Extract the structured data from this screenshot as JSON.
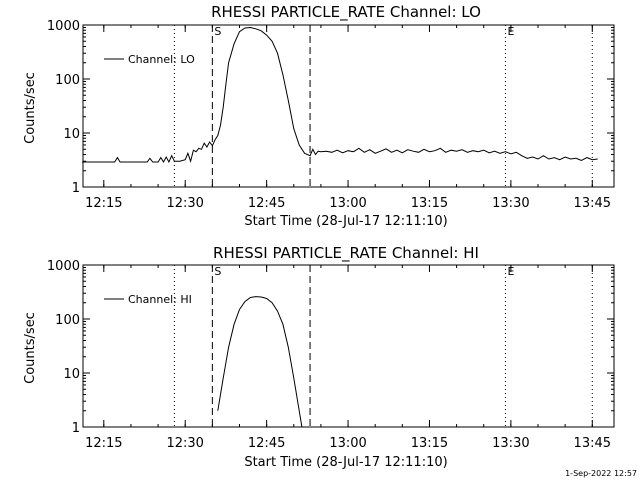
{
  "footer": "1-Sep-2022 12:57",
  "chart_data": [
    {
      "type": "line",
      "title": "RHESSI PARTICLE_RATE Channel: LO",
      "xlabel": "Start Time (28-Jul-17 12:11:10)",
      "ylabel": "Counts/sec",
      "yscale": "log",
      "ylim": [
        1,
        1000
      ],
      "xlim": [
        "12:11:10",
        "13:49:00"
      ],
      "x_ticks": [
        "12:15",
        "12:30",
        "12:45",
        "13:00",
        "13:15",
        "13:30",
        "13:45"
      ],
      "y_ticks": [
        "1",
        "10",
        "100",
        "1000"
      ],
      "legend": {
        "label": "Channel: LO",
        "position": "top-left"
      },
      "vertical_markers": [
        {
          "time": "12:28",
          "style": "dotted",
          "label": ""
        },
        {
          "time": "12:35",
          "style": "dashed",
          "label": "S"
        },
        {
          "time": "12:53",
          "style": "dashed",
          "label": ""
        },
        {
          "time": "13:29",
          "style": "dotted",
          "label": "E"
        },
        {
          "time": "13:45",
          "style": "dotted",
          "label": ""
        }
      ],
      "series": [
        {
          "name": "Channel: LO",
          "x": [
            "12:11",
            "12:15",
            "12:17",
            "12:17.5",
            "12:18",
            "12:23",
            "12:23.5",
            "12:24",
            "12:25",
            "12:25.5",
            "12:26",
            "12:26.5",
            "12:27",
            "12:27.5",
            "12:28",
            "12:29",
            "12:30",
            "12:30.5",
            "12:31",
            "12:31.5",
            "12:32",
            "12:32.5",
            "12:33",
            "12:33.5",
            "12:34",
            "12:34.5",
            "12:35",
            "12:35.5",
            "12:36",
            "12:36.5",
            "12:37",
            "12:37.5",
            "12:38",
            "12:39",
            "12:40",
            "12:41",
            "12:42",
            "12:43",
            "12:44",
            "12:45",
            "12:46",
            "12:47",
            "12:48",
            "12:49",
            "12:50",
            "12:51",
            "12:52",
            "12:53",
            "12:53.5",
            "12:54",
            "12:54.5",
            "12:55",
            "12:56",
            "12:57",
            "12:58",
            "12:59",
            "13:00",
            "13:01",
            "13:02",
            "13:03",
            "13:04",
            "13:05",
            "13:06",
            "13:07",
            "13:08",
            "13:09",
            "13:10",
            "13:11",
            "13:12",
            "13:13",
            "13:14",
            "13:15",
            "13:16",
            "13:17",
            "13:18",
            "13:19",
            "13:20",
            "13:21",
            "13:22",
            "13:23",
            "13:24",
            "13:25",
            "13:26",
            "13:27",
            "13:28",
            "13:29",
            "13:30",
            "13:31",
            "13:32",
            "13:33",
            "13:34",
            "13:35",
            "13:36",
            "13:37",
            "13:38",
            "13:39",
            "13:40",
            "13:41",
            "13:42",
            "13:43",
            "13:44",
            "13:45",
            "13:46"
          ],
          "y": [
            2.9,
            2.9,
            2.9,
            3.5,
            2.9,
            2.9,
            3.4,
            2.9,
            2.9,
            3.5,
            2.9,
            3.6,
            2.9,
            3.8,
            3.0,
            3.0,
            3.2,
            4.2,
            3.0,
            4.8,
            4.5,
            5.2,
            5.0,
            6.5,
            5.5,
            6.8,
            5.8,
            7.5,
            9,
            14,
            30,
            80,
            200,
            450,
            750,
            880,
            900,
            850,
            780,
            650,
            500,
            300,
            120,
            40,
            12,
            6,
            4.2,
            3.8,
            5.0,
            4.0,
            4.6,
            4.5,
            4.6,
            4.4,
            4.8,
            4.3,
            4.7,
            4.5,
            5.2,
            4.4,
            4.9,
            4.2,
            4.6,
            5.1,
            4.4,
            4.8,
            4.3,
            4.9,
            4.6,
            4.4,
            5.0,
            4.5,
            4.7,
            5.2,
            4.4,
            4.8,
            4.6,
            4.9,
            4.4,
            4.7,
            4.5,
            4.8,
            4.3,
            4.6,
            4.2,
            4.5,
            4.1,
            4.4,
            3.8,
            3.4,
            3.6,
            3.3,
            3.8,
            3.3,
            3.5,
            3.2,
            3.6,
            3.3,
            3.4,
            3.1,
            3.5,
            3.2,
            3.3
          ]
        }
      ]
    },
    {
      "type": "line",
      "title": "RHESSI PARTICLE_RATE Channel: HI",
      "xlabel": "Start Time (28-Jul-17 12:11:10)",
      "ylabel": "Counts/sec",
      "yscale": "log",
      "ylim": [
        1,
        1000
      ],
      "xlim": [
        "12:11:10",
        "13:49:00"
      ],
      "x_ticks": [
        "12:15",
        "12:30",
        "12:45",
        "13:00",
        "13:15",
        "13:30",
        "13:45"
      ],
      "y_ticks": [
        "1",
        "10",
        "100",
        "1000"
      ],
      "legend": {
        "label": "Channel: HI",
        "position": "top-left"
      },
      "vertical_markers": [
        {
          "time": "12:28",
          "style": "dotted",
          "label": ""
        },
        {
          "time": "12:35",
          "style": "dashed",
          "label": "S"
        },
        {
          "time": "12:53",
          "style": "dashed",
          "label": ""
        },
        {
          "time": "13:29",
          "style": "dotted",
          "label": "E"
        },
        {
          "time": "13:45",
          "style": "dotted",
          "label": ""
        }
      ],
      "series": [
        {
          "name": "Channel: HI",
          "x": [
            "12:36",
            "12:37",
            "12:38",
            "12:39",
            "12:40",
            "12:41",
            "12:42",
            "12:43",
            "12:44",
            "12:45",
            "12:46",
            "12:47",
            "12:48",
            "12:49",
            "12:50",
            "12:51",
            "12:51.5"
          ],
          "y": [
            2,
            8,
            30,
            80,
            150,
            210,
            250,
            260,
            255,
            240,
            200,
            140,
            80,
            30,
            8,
            2,
            1
          ]
        }
      ]
    }
  ]
}
